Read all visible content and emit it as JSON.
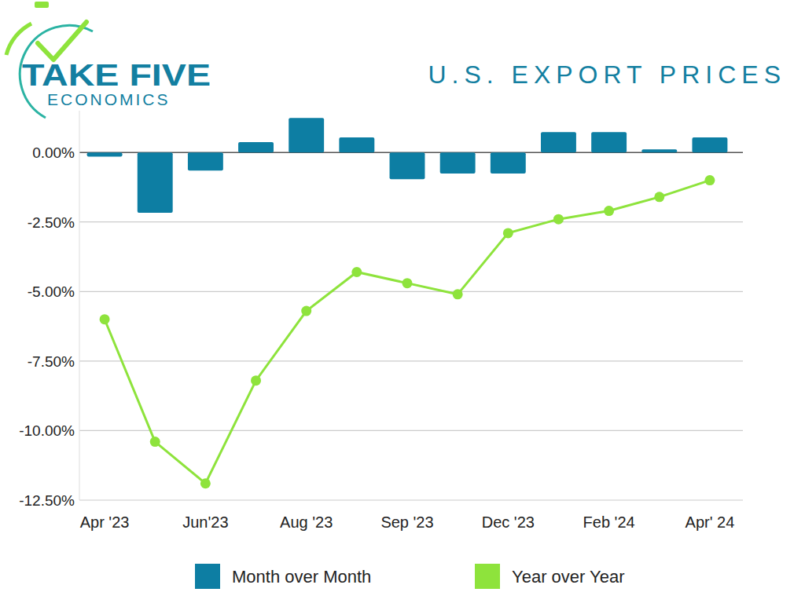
{
  "chart_data": {
    "type": "bar",
    "title": "U.S. EXPORT PRICES",
    "annotations": [
      "TAKE FIVE",
      "ECONOMICS"
    ],
    "categories": [
      "Apr '23",
      null,
      "Jun'23",
      null,
      "Aug '23",
      null,
      "Sep '23",
      null,
      "Dec '23",
      null,
      "Feb '24",
      null,
      "Apr' 24"
    ],
    "series": [
      {
        "name": "Month over Month",
        "type": "bar",
        "color": "#0d7ea3",
        "values": [
          -0.15,
          -2.17,
          -0.65,
          0.37,
          1.24,
          0.54,
          -0.96,
          -0.76,
          -0.76,
          0.73,
          0.73,
          0.11,
          0.54
        ]
      },
      {
        "name": "Year over Year",
        "type": "line",
        "color": "#8ee33c",
        "marker": "circle",
        "values": [
          -6.0,
          -10.4,
          -11.9,
          -8.2,
          -5.7,
          -4.3,
          -4.7,
          -5.1,
          -2.9,
          -2.4,
          -2.1,
          -1.6,
          -1.0
        ]
      }
    ],
    "ylim": [
      -12.5,
      1.5
    ],
    "yticks": [
      {
        "value": 0,
        "label": "0.00%"
      },
      {
        "value": -2.5,
        "label": "-2.50%"
      },
      {
        "value": -5,
        "label": "-5.00%"
      },
      {
        "value": -7.5,
        "label": "-7.50%"
      },
      {
        "value": -10,
        "label": "-10.00%"
      },
      {
        "value": -12.5,
        "label": "-12.50%"
      }
    ],
    "grid": true,
    "legend": "bottom"
  }
}
